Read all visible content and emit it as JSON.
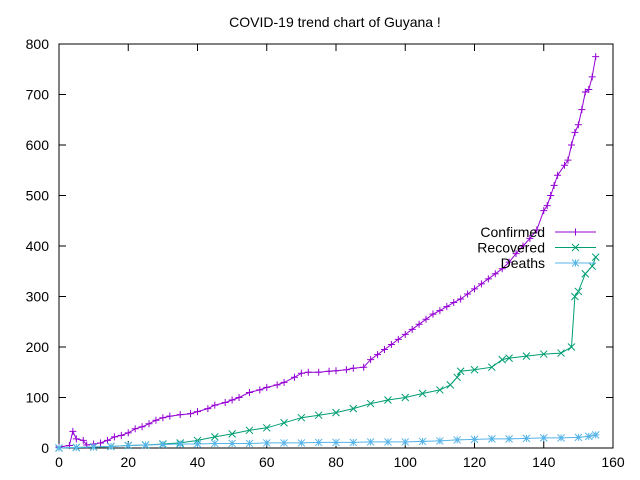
{
  "chart_data": {
    "type": "line",
    "title": "COVID-19 trend chart of Guyana !",
    "xlabel": "",
    "ylabel": "",
    "xlim": [
      0,
      160
    ],
    "ylim": [
      0,
      800
    ],
    "x_ticks": [
      "0",
      "20",
      "40",
      "60",
      "80",
      "100",
      "120",
      "140",
      "160"
    ],
    "y_ticks": [
      "0",
      "100",
      "200",
      "300",
      "400",
      "500",
      "600",
      "700",
      "800"
    ],
    "grid": false,
    "legend_position": "right",
    "series": [
      {
        "name": "Confirmed",
        "color": "#9400d3",
        "marker": "plus",
        "x": [
          0,
          3,
          4,
          5,
          7,
          8,
          10,
          12,
          14,
          16,
          18,
          20,
          22,
          24,
          26,
          28,
          30,
          32,
          35,
          38,
          40,
          43,
          45,
          48,
          50,
          52,
          55,
          58,
          60,
          63,
          65,
          68,
          70,
          72,
          75,
          78,
          80,
          83,
          85,
          88,
          90,
          92,
          94,
          96,
          98,
          100,
          102,
          104,
          106,
          108,
          110,
          112,
          114,
          116,
          118,
          120,
          122,
          124,
          126,
          128,
          130,
          132,
          134,
          136,
          138,
          140,
          141,
          142,
          143,
          144,
          146,
          147,
          148,
          149,
          150,
          151,
          152,
          153,
          154,
          155
        ],
        "y": [
          2,
          5,
          33,
          18,
          15,
          6,
          8,
          10,
          15,
          22,
          25,
          30,
          38,
          42,
          48,
          55,
          60,
          63,
          66,
          68,
          72,
          78,
          85,
          90,
          95,
          100,
          110,
          115,
          120,
          125,
          130,
          140,
          148,
          150,
          150,
          152,
          153,
          155,
          158,
          160,
          175,
          185,
          195,
          205,
          215,
          225,
          235,
          245,
          255,
          265,
          272,
          280,
          288,
          295,
          305,
          315,
          325,
          335,
          345,
          355,
          368,
          385,
          400,
          415,
          432,
          470,
          480,
          500,
          520,
          540,
          560,
          570,
          600,
          625,
          640,
          670,
          705,
          710,
          735,
          775
        ]
      },
      {
        "name": "Recovered",
        "color": "#009e73",
        "marker": "x",
        "x": [
          0,
          5,
          10,
          15,
          20,
          25,
          30,
          35,
          40,
          45,
          50,
          55,
          60,
          65,
          70,
          75,
          80,
          85,
          90,
          95,
          100,
          105,
          110,
          113,
          115,
          116,
          120,
          125,
          128,
          130,
          135,
          140,
          145,
          148,
          149,
          150,
          152,
          154,
          155
        ],
        "y": [
          0,
          1,
          2,
          3,
          5,
          6,
          8,
          10,
          15,
          22,
          28,
          35,
          40,
          50,
          60,
          65,
          70,
          78,
          88,
          95,
          100,
          108,
          115,
          125,
          140,
          152,
          155,
          160,
          175,
          178,
          182,
          186,
          188,
          200,
          300,
          310,
          345,
          360,
          378
        ]
      },
      {
        "name": "Deaths",
        "color": "#56b4e9",
        "marker": "star",
        "x": [
          0,
          5,
          10,
          15,
          20,
          25,
          30,
          35,
          40,
          45,
          50,
          55,
          60,
          65,
          70,
          75,
          80,
          85,
          90,
          95,
          100,
          105,
          110,
          115,
          120,
          125,
          130,
          135,
          140,
          145,
          150,
          153,
          155
        ],
        "y": [
          0,
          1,
          2,
          3,
          5,
          6,
          7,
          8,
          8,
          9,
          9,
          9,
          10,
          10,
          10,
          11,
          11,
          11,
          12,
          12,
          12,
          13,
          14,
          16,
          17,
          18,
          18,
          19,
          20,
          20,
          21,
          23,
          26
        ]
      }
    ]
  }
}
